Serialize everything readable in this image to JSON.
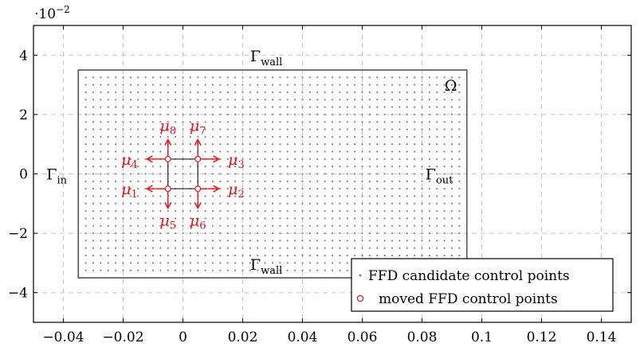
{
  "chart_data": {
    "type": "scatter",
    "axis_multiplier": "·10",
    "axis_multiplier_exp": "−2",
    "xlim": [
      -0.05,
      0.15
    ],
    "ylim": [
      -5,
      5
    ],
    "x_ticks": [
      -0.04,
      -0.02,
      0,
      0.02,
      0.04,
      0.06,
      0.08,
      0.1,
      0.12,
      0.14
    ],
    "x_tick_labels": [
      "−0.04",
      "−0.02",
      "0",
      "0.02",
      "0.04",
      "0.06",
      "0.08",
      "0.1",
      "0.12",
      "0.14"
    ],
    "y_ticks": [
      -4,
      -2,
      0,
      2,
      4
    ],
    "y_tick_labels": [
      "−4",
      "−2",
      "0",
      "2",
      "4"
    ],
    "grid": true,
    "domain_rect": {
      "x0": -0.035,
      "x1": 0.095,
      "y0": -3.5,
      "y1": 3.5
    },
    "candidate_grid": {
      "x_start": -0.0325,
      "x_step": 0.0025,
      "count_x": 51,
      "y_start": -3.25,
      "y_step": 0.25,
      "count_y": 27
    },
    "moved_points": [
      {
        "x": -0.005,
        "y": -0.5
      },
      {
        "x": 0.005,
        "y": -0.5
      },
      {
        "x": 0.005,
        "y": 0.5
      },
      {
        "x": -0.005,
        "y": 0.5
      }
    ],
    "arrow_length": 0.65,
    "arrow_length_x": 0.007,
    "region_labels": {
      "omega": "Ω",
      "wall_top": {
        "base": "Γ",
        "sub": "wall"
      },
      "wall_bottom": {
        "base": "Γ",
        "sub": "wall"
      },
      "inlet": {
        "base": "Γ",
        "sub": "in"
      },
      "outlet": {
        "base": "Γ",
        "sub": "out"
      }
    },
    "params": [
      {
        "base": "μ",
        "sub": "1"
      },
      {
        "base": "μ",
        "sub": "2"
      },
      {
        "base": "μ",
        "sub": "3"
      },
      {
        "base": "μ",
        "sub": "4"
      },
      {
        "base": "μ",
        "sub": "5"
      },
      {
        "base": "μ",
        "sub": "6"
      },
      {
        "base": "μ",
        "sub": "7"
      },
      {
        "base": "μ",
        "sub": "8"
      }
    ],
    "legend": {
      "placement": "bottom-right",
      "entries": [
        {
          "label": "FFD candidate control points",
          "marker": "dot",
          "color": "#8c8c8c"
        },
        {
          "label": "moved FFD control points",
          "marker": "circle",
          "color": "#e8141c"
        }
      ]
    },
    "colors": {
      "accent": "#e8141c",
      "grid": "#c8c8c8",
      "points": "#8c8c8c",
      "rect": "#555555"
    }
  }
}
